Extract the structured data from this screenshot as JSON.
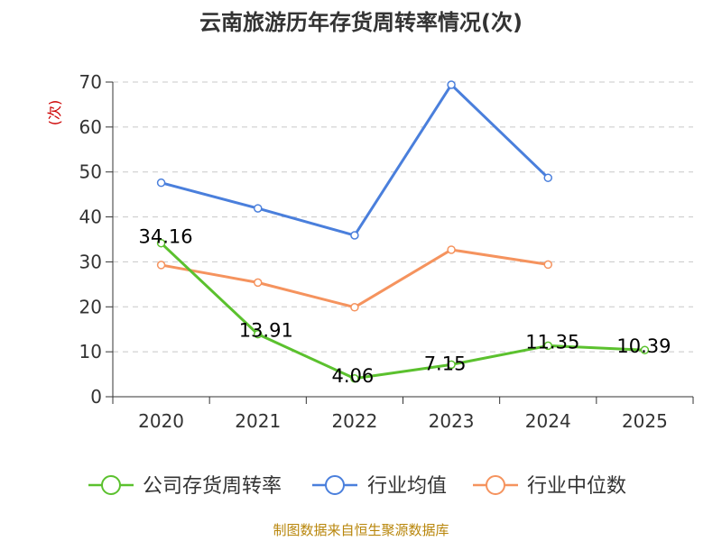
{
  "chart_data": {
    "type": "line",
    "title": "云南旅游历年存货周转率情况(次)",
    "ylabel": "(次)",
    "categories": [
      "2020",
      "2021",
      "2022",
      "2023",
      "2024",
      "2025"
    ],
    "yticks": [
      "0",
      "10",
      "20",
      "30",
      "40",
      "50",
      "60",
      "70"
    ],
    "ylim": [
      0,
      70
    ],
    "grid": true,
    "legend_position": "bottom",
    "series": [
      {
        "name": "公司存货周转率",
        "color": "#5bc12e",
        "values": [
          34.16,
          13.91,
          4.06,
          7.15,
          11.35,
          10.39
        ],
        "labels": [
          "34.16",
          "13.91",
          "4.06",
          "7.15",
          "11.35",
          "10.39"
        ]
      },
      {
        "name": "行业均值",
        "color": "#4a7fdc",
        "values": [
          47.6,
          41.9,
          35.9,
          69.4,
          48.7,
          null
        ]
      },
      {
        "name": "行业中位数",
        "color": "#f5935e",
        "values": [
          29.3,
          25.4,
          19.9,
          32.7,
          29.4,
          null
        ]
      }
    ],
    "source": "制图数据来自恒生聚源数据库"
  }
}
